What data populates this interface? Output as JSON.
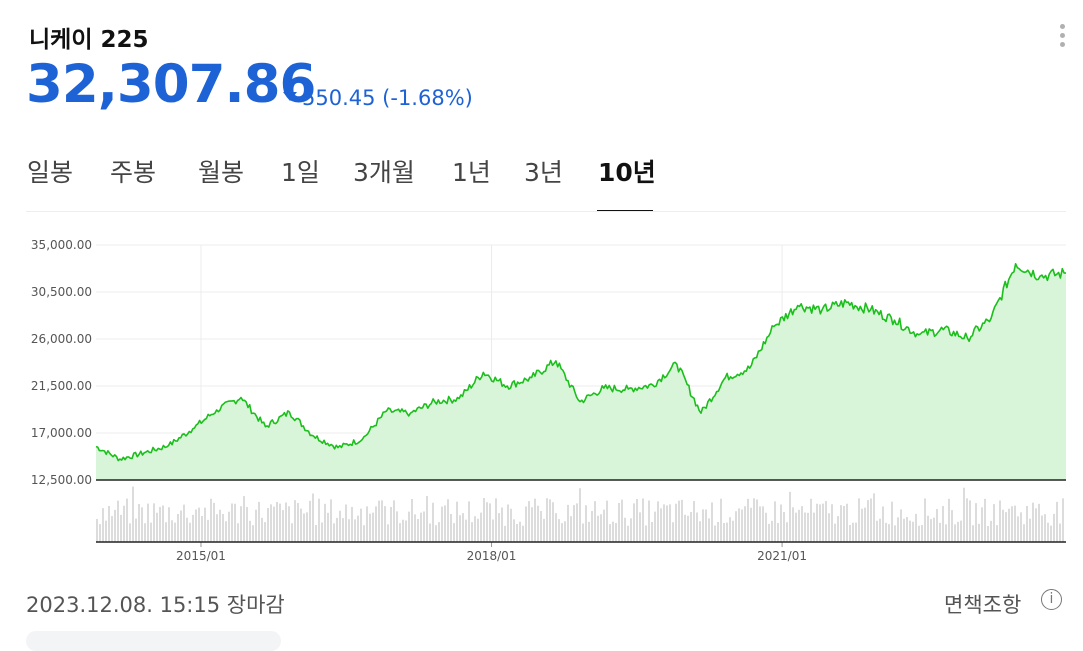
{
  "header": {
    "title": "니케이 225",
    "price": "32,307.86",
    "change": "550.45",
    "change_pct": "(-1.68%)",
    "direction": "down",
    "accent_color": "#1e63d6"
  },
  "tabs": [
    {
      "label": "일봉",
      "active": false
    },
    {
      "label": "주봉",
      "active": false
    },
    {
      "label": "월봉",
      "active": false
    },
    {
      "label": "1일",
      "active": false
    },
    {
      "label": "3개월",
      "active": false
    },
    {
      "label": "1년",
      "active": false
    },
    {
      "label": "3년",
      "active": false
    },
    {
      "label": "10년",
      "active": true
    }
  ],
  "menu_icon": "more-vertical-icon",
  "chart_data": {
    "type": "area",
    "line_color": "#1bbf1b",
    "fill_color": "#d9f5d9",
    "ylim": [
      12500,
      35000
    ],
    "y_ticks": [
      "35,000.00",
      "30,500.00",
      "26,000.00",
      "21,500.00",
      "17,000.00",
      "12,500.00"
    ],
    "x_ticks": [
      "2015/01",
      "2018/01",
      "2021/01"
    ],
    "x": [
      "2013-12",
      "2014-03",
      "2014-06",
      "2014-09",
      "2014-12",
      "2015-03",
      "2015-06",
      "2015-09",
      "2015-12",
      "2016-03",
      "2016-06",
      "2016-09",
      "2016-12",
      "2017-03",
      "2017-06",
      "2017-09",
      "2017-12",
      "2018-03",
      "2018-06",
      "2018-09",
      "2018-12",
      "2019-03",
      "2019-06",
      "2019-09",
      "2019-12",
      "2020-03",
      "2020-06",
      "2020-09",
      "2020-12",
      "2021-03",
      "2021-06",
      "2021-09",
      "2021-12",
      "2022-03",
      "2022-06",
      "2022-09",
      "2022-12",
      "2023-03",
      "2023-06",
      "2023-09",
      "2023-12"
    ],
    "values": [
      15700,
      14500,
      15100,
      15800,
      17400,
      19200,
      20400,
      17600,
      19000,
      16700,
      15600,
      16400,
      19100,
      18900,
      20000,
      20300,
      22800,
      21500,
      22300,
      23900,
      20000,
      21300,
      21200,
      21600,
      23600,
      18900,
      22300,
      23200,
      27200,
      29200,
      28800,
      29500,
      28800,
      27800,
      26400,
      26900,
      26100,
      28000,
      33200,
      32000,
      32307.86
    ],
    "volume": "visible"
  },
  "footer": {
    "timestamp": "2023.12.08. 15:15 장마감",
    "disclaimer": "면책조항"
  }
}
